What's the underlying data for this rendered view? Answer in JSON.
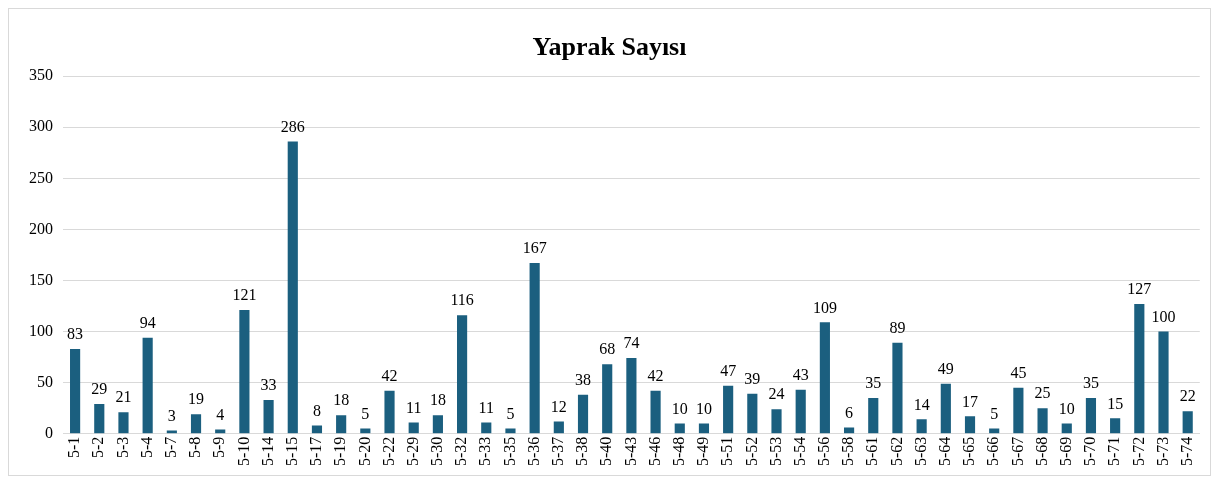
{
  "chart_data": {
    "type": "bar",
    "title": "Yaprak Sayısı",
    "categories": [
      "5-1",
      "5-2",
      "5-3",
      "5-4",
      "5-7",
      "5-8",
      "5-9",
      "5-10",
      "5-14",
      "5-15",
      "5-17",
      "5-19",
      "5-20",
      "5-22",
      "5-29",
      "5-30",
      "5-32",
      "5-33",
      "5-35",
      "5-36",
      "5-37",
      "5-38",
      "5-40",
      "5-43",
      "5-46",
      "5-48",
      "5-49",
      "5-51",
      "5-52",
      "5-53",
      "5-54",
      "5-56",
      "5-58",
      "5-61",
      "5-62",
      "5-63",
      "5-64",
      "5-65",
      "5-66",
      "5-67",
      "5-68",
      "5-69",
      "5-70",
      "5-71",
      "5-72",
      "5-73",
      "5-74"
    ],
    "values": [
      83,
      29,
      21,
      94,
      3,
      19,
      4,
      121,
      33,
      286,
      8,
      18,
      5,
      42,
      11,
      18,
      116,
      11,
      5,
      167,
      12,
      38,
      68,
      74,
      42,
      10,
      10,
      47,
      39,
      24,
      43,
      109,
      6,
      35,
      89,
      14,
      49,
      17,
      5,
      45,
      25,
      10,
      35,
      15,
      127,
      100,
      22
    ],
    "color": "#1b5f7f",
    "ylim": [
      0,
      350
    ],
    "yticks": [
      0,
      50,
      100,
      150,
      200,
      250,
      300,
      350
    ],
    "grid": "y",
    "data_labels": true,
    "legend": false
  }
}
